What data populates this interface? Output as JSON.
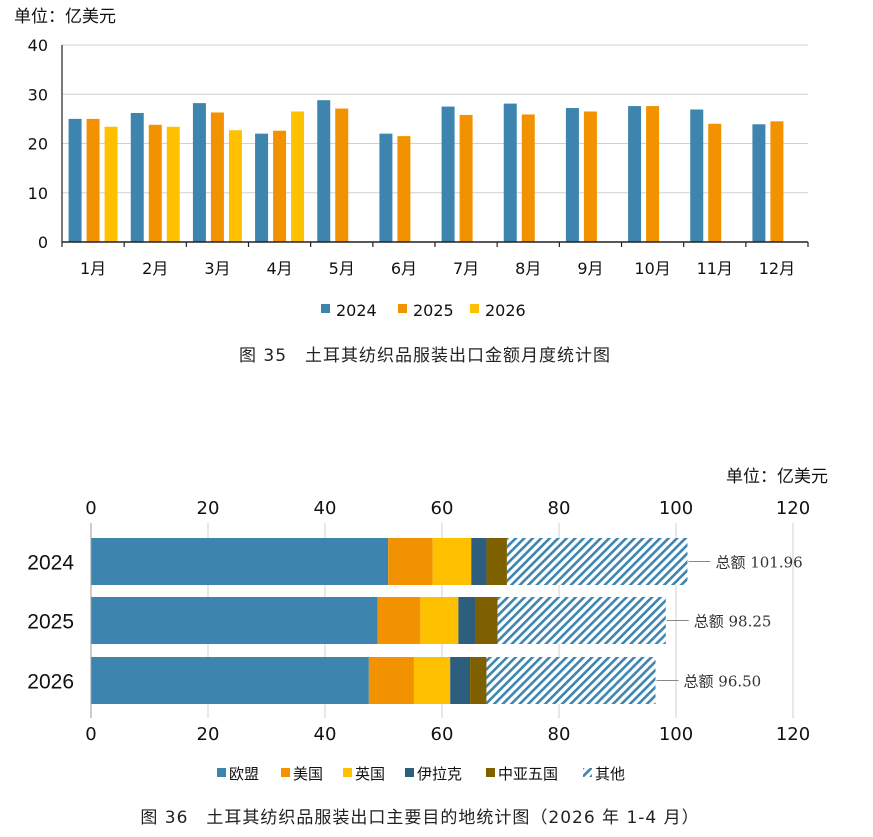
{
  "chart_data": [
    {
      "type": "bar",
      "unit_label": "单位：亿美元",
      "caption": "图 35　土耳其纺织品服装出口金额月度统计图",
      "categories": [
        "1月",
        "2月",
        "3月",
        "4月",
        "5月",
        "6月",
        "7月",
        "8月",
        "9月",
        "10月",
        "11月",
        "12月"
      ],
      "ylim": [
        0,
        40
      ],
      "yticks": [
        "0",
        "10",
        "20",
        "30",
        "40"
      ],
      "grid": true,
      "legend_position": "bottom",
      "colors": [
        "#3D85AE",
        "#F39200",
        "#FFC000"
      ],
      "series": [
        {
          "name": "2024",
          "values": [
            25.0,
            26.2,
            28.2,
            22.0,
            28.8,
            22.0,
            27.5,
            28.1,
            27.2,
            27.6,
            26.9,
            23.9
          ]
        },
        {
          "name": "2025",
          "values": [
            25.0,
            23.8,
            26.3,
            22.6,
            27.1,
            21.5,
            25.8,
            25.9,
            26.5,
            27.6,
            24.0,
            24.5
          ]
        },
        {
          "name": "2026",
          "values": [
            23.4,
            23.4,
            22.7,
            26.5,
            null,
            null,
            null,
            null,
            null,
            null,
            null,
            null
          ]
        }
      ]
    },
    {
      "type": "bar",
      "orientation": "horizontal",
      "stacked": true,
      "unit_label": "单位：亿美元",
      "caption": "图 36　土耳其纺织品服装出口主要目的地统计图（2026 年 1-4 月）",
      "categories": [
        "2024",
        "2025",
        "2026"
      ],
      "xlim": [
        0,
        120
      ],
      "xticks": [
        "0",
        "20",
        "40",
        "60",
        "80",
        "100",
        "120"
      ],
      "grid": true,
      "legend_position": "bottom",
      "series": [
        {
          "name": "欧盟",
          "color": "#3D85AE",
          "values": [
            50.8,
            49.0,
            47.5
          ]
        },
        {
          "name": "美国",
          "color": "#F39200",
          "values": [
            7.6,
            7.3,
            7.7
          ]
        },
        {
          "name": "英国",
          "color": "#FFC000",
          "values": [
            6.6,
            6.5,
            6.2
          ]
        },
        {
          "name": "伊拉克",
          "color": "#2E5E7E",
          "values": [
            2.6,
            3.0,
            3.4
          ]
        },
        {
          "name": "中亚五国",
          "color": "#7F6000",
          "values": [
            3.5,
            3.7,
            2.8
          ]
        },
        {
          "name": "其他",
          "color": "#3D85AE",
          "pattern": "hatch",
          "values": [
            30.86,
            28.75,
            28.9
          ]
        }
      ],
      "total_labels": [
        "总额  101.96",
        "总额  98.25",
        "总额  96.50"
      ]
    }
  ]
}
